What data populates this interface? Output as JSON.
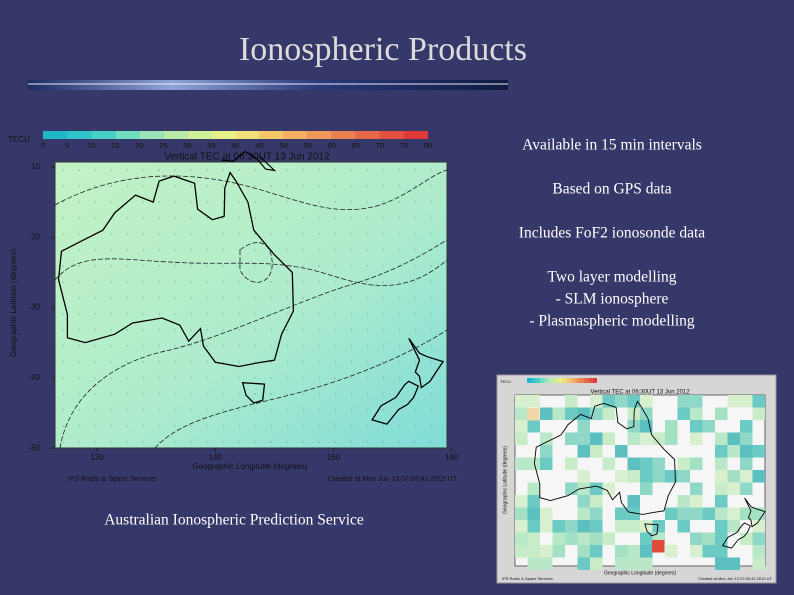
{
  "slide": {
    "title": "Ionospheric Products",
    "bullets": [
      "Available in 15 min intervals",
      "Based on GPS data",
      "Includes FoF2 ionosonde data",
      "Two layer modelling",
      "- SLM ionosphere",
      "- Plasmaspheric modelling"
    ],
    "caption": "Australian Ionospheric Prediction Service"
  },
  "main_map": {
    "colorbar_label": "TECU",
    "colorbar_ticks": [
      "0",
      "5",
      "10",
      "15",
      "20",
      "25",
      "30",
      "35",
      "40",
      "45",
      "50",
      "55",
      "60",
      "65",
      "70",
      "75",
      "80"
    ],
    "title": "Vertical TEC at 06:30UT 13 Jun 2012",
    "y_label": "Geographic Latitude (degrees)",
    "y_ticks": [
      "-10",
      "-20",
      "-30",
      "-40",
      "-50"
    ],
    "x_label": "Geographic Longitude (degrees)",
    "x_ticks": [
      "120",
      "140",
      "160",
      "180"
    ],
    "credit_left": "IPS Radio & Space Services",
    "credit_right": "Created at Mon Jun 13 07:09:42 2012 UT"
  },
  "inset_map": {
    "colorbar_label": "TECU",
    "title": "Vertical TEC at 06:30UT 13 Jun 2012",
    "y_label": "Geographic Latitude (degrees)",
    "x_label": "Geographic Longitude (degrees)",
    "credit_left": "IPS Radio & Space Services",
    "credit_right": "Created at Mon Jun 13 07:09:42 2012 UT"
  }
}
